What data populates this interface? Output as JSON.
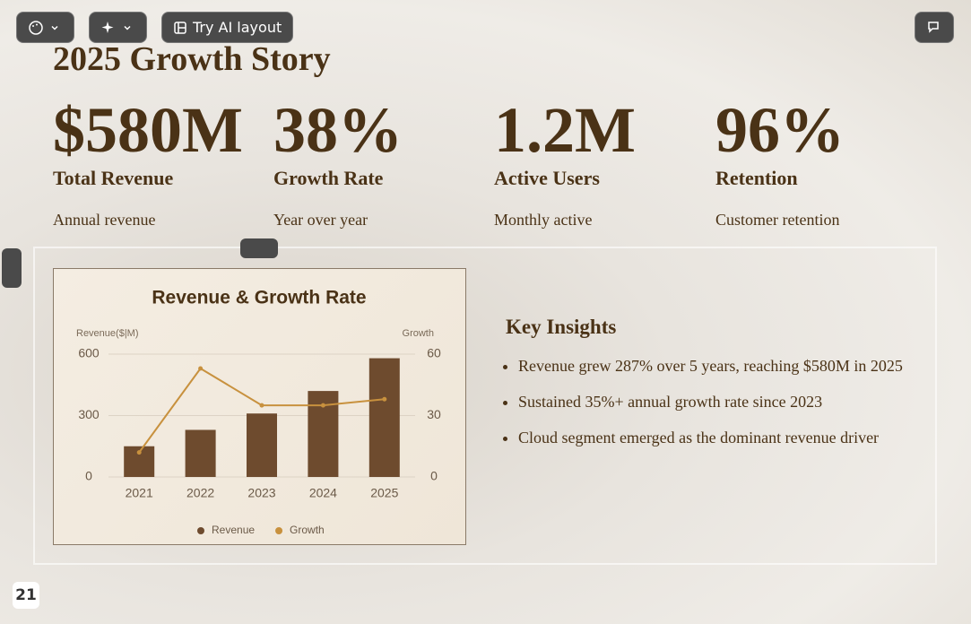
{
  "toolbar": {
    "ai_button": "Try AI layout"
  },
  "slide": {
    "title": "2025 Growth Story",
    "stats": [
      {
        "value": "$580M",
        "label": "Total Revenue",
        "caption": "Annual revenue"
      },
      {
        "value": "38%",
        "label": "Growth Rate",
        "caption": "Year over year"
      },
      {
        "value": "1.2M",
        "label": "Active Users",
        "caption": "Monthly active"
      },
      {
        "value": "96%",
        "label": "Retention",
        "caption": "Customer retention"
      }
    ],
    "insights": {
      "title": "Key Insights",
      "items": [
        "Revenue grew 287% over 5 years, reaching $580M in 2025",
        "Sustained 35%+ annual growth rate since 2023",
        "Cloud segment emerged as the dominant revenue driver"
      ]
    }
  },
  "page_number": 21,
  "chart_data": {
    "type": "bar",
    "title": "Revenue & Growth Rate",
    "y_label": "Revenue($|M)",
    "y2_label": "Growth",
    "categories": [
      "2021",
      "2022",
      "2023",
      "2024",
      "2025"
    ],
    "series": [
      {
        "name": "Revenue",
        "color": "#6e4b2e",
        "values": [
          150,
          230,
          310,
          420,
          580
        ]
      },
      {
        "name": "Growth",
        "color": "#c8913e",
        "type": "line",
        "axis": "y2",
        "values": [
          12,
          53,
          35,
          35,
          38
        ]
      }
    ],
    "ylim": [
      0,
      600
    ],
    "yticks": [
      0,
      300,
      600
    ],
    "y2lim": [
      0,
      60
    ],
    "y2ticks": [
      0,
      30,
      60
    ],
    "grid": true,
    "legend": "bottom"
  }
}
